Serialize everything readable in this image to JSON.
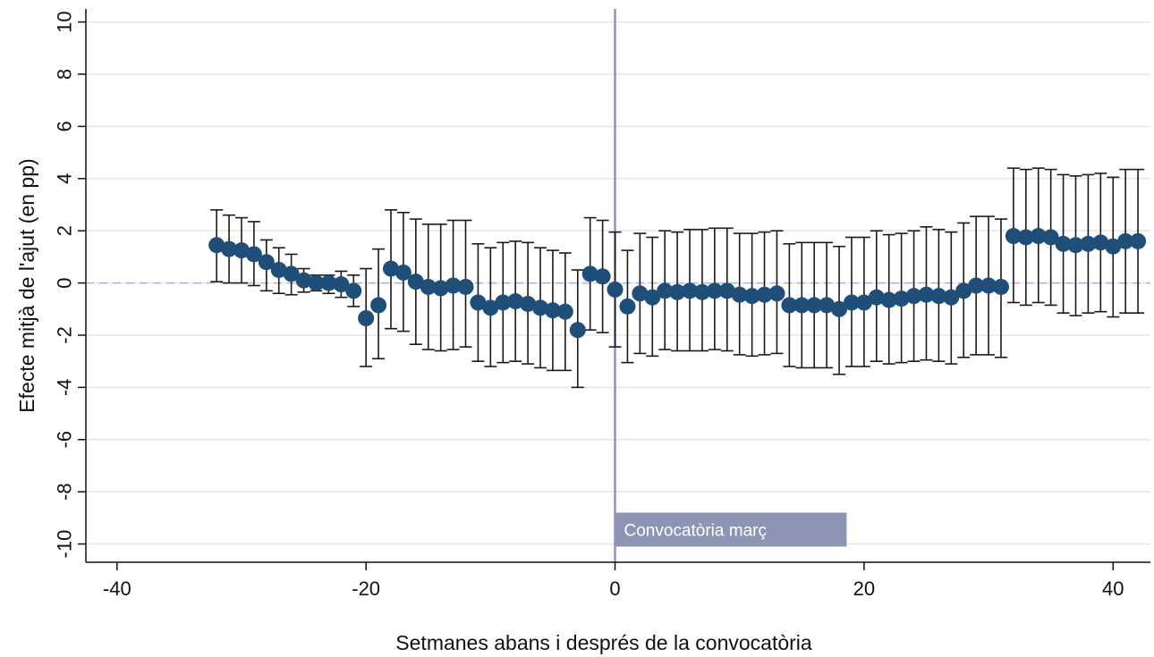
{
  "chart_data": {
    "type": "scatter",
    "title": "",
    "xlabel": "Setmanes abans i després de la convocatòria",
    "ylabel": "Efecte mitjà de l'ajut (en pp)",
    "xlim": [
      -42.5,
      43
    ],
    "ylim": [
      -10.7,
      10.5
    ],
    "x_ticks": [
      -40,
      -20,
      0,
      20,
      40
    ],
    "x_tick_labels": [
      "-40",
      "-20",
      "0",
      "20",
      "40"
    ],
    "y_ticks": [
      -10,
      -8,
      -6,
      -4,
      -2,
      0,
      2,
      4,
      6,
      8,
      10
    ],
    "y_tick_labels": [
      "-10",
      "-8",
      "-6",
      "-4",
      "-2",
      "0",
      "2",
      "4",
      "6",
      "8",
      "10"
    ],
    "grid": true,
    "reference_line_y": 0,
    "event_line_x": 0,
    "annotation": {
      "text": "Convocatòria març",
      "x_from": 0,
      "x_to": 18.6,
      "y_from": -10.1,
      "y_to": -8.8
    },
    "colors": {
      "points": "#1f4e79",
      "errorbars": "#1a1a1a",
      "event_line": "#8c96b4",
      "reference_line": "#a8b4d0",
      "annotation_bg": "#8c96b4",
      "grid": "#e6e6e6"
    },
    "series": [
      {
        "x": [
          -32,
          -31,
          -30,
          -29,
          -28,
          -27,
          -26,
          -25,
          -24,
          -23,
          -22,
          -21,
          -20,
          -19,
          -18,
          -17,
          -16,
          -15,
          -14,
          -13,
          -12,
          -11,
          -10,
          -9,
          -8,
          -7,
          -6,
          -5,
          -4,
          -3,
          -2,
          -1,
          0,
          1,
          2,
          3,
          4,
          5,
          6,
          7,
          8,
          9,
          10,
          11,
          12,
          13,
          14,
          15,
          16,
          17,
          18,
          19,
          20,
          21,
          22,
          23,
          24,
          25,
          26,
          27,
          28,
          29,
          30,
          31,
          32,
          33,
          34,
          35,
          36,
          37,
          38,
          39,
          40,
          41,
          42
        ],
        "y": [
          1.45,
          1.3,
          1.25,
          1.1,
          0.8,
          0.5,
          0.35,
          0.1,
          0.0,
          0.0,
          -0.05,
          -0.3,
          -1.35,
          -0.85,
          0.55,
          0.4,
          0.05,
          -0.15,
          -0.2,
          -0.1,
          -0.15,
          -0.75,
          -0.95,
          -0.75,
          -0.7,
          -0.8,
          -0.95,
          -1.05,
          -1.1,
          -1.8,
          0.35,
          0.25,
          -0.25,
          -0.9,
          -0.4,
          -0.55,
          -0.3,
          -0.35,
          -0.3,
          -0.35,
          -0.3,
          -0.3,
          -0.45,
          -0.5,
          -0.45,
          -0.4,
          -0.85,
          -0.85,
          -0.85,
          -0.85,
          -1.0,
          -0.75,
          -0.75,
          -0.55,
          -0.65,
          -0.6,
          -0.5,
          -0.45,
          -0.5,
          -0.55,
          -0.3,
          -0.1,
          -0.1,
          -0.15,
          1.8,
          1.75,
          1.8,
          1.75,
          1.5,
          1.45,
          1.5,
          1.55,
          1.4,
          1.6,
          1.6
        ],
        "lower": [
          0.05,
          0.0,
          0.0,
          -0.1,
          -0.3,
          -0.4,
          -0.45,
          -0.35,
          -0.3,
          -0.4,
          -0.55,
          -0.9,
          -3.2,
          -2.9,
          -1.75,
          -1.85,
          -2.35,
          -2.55,
          -2.6,
          -2.55,
          -2.45,
          -3.0,
          -3.2,
          -3.05,
          -3.0,
          -3.1,
          -3.25,
          -3.35,
          -3.35,
          -4.0,
          -1.8,
          -1.9,
          -2.45,
          -3.05,
          -2.7,
          -2.8,
          -2.55,
          -2.6,
          -2.6,
          -2.6,
          -2.55,
          -2.6,
          -2.75,
          -2.8,
          -2.75,
          -2.7,
          -3.2,
          -3.25,
          -3.25,
          -3.25,
          -3.5,
          -3.2,
          -3.2,
          -3.0,
          -3.1,
          -3.05,
          -3.0,
          -2.95,
          -3.0,
          -3.1,
          -2.85,
          -2.75,
          -2.75,
          -2.85,
          -0.75,
          -0.85,
          -0.75,
          -0.85,
          -1.15,
          -1.25,
          -1.15,
          -1.1,
          -1.3,
          -1.15,
          -1.15
        ],
        "upper": [
          2.8,
          2.6,
          2.5,
          2.35,
          1.65,
          1.35,
          1.1,
          0.55,
          0.3,
          0.3,
          0.45,
          0.3,
          0.55,
          1.3,
          2.8,
          2.7,
          2.45,
          2.25,
          2.25,
          2.4,
          2.4,
          1.5,
          1.35,
          1.55,
          1.6,
          1.55,
          1.35,
          1.25,
          1.15,
          0.5,
          2.5,
          2.4,
          1.95,
          1.25,
          1.9,
          1.75,
          2.0,
          1.95,
          2.05,
          2.05,
          2.1,
          2.1,
          1.9,
          1.9,
          1.95,
          2.0,
          1.5,
          1.55,
          1.55,
          1.55,
          1.4,
          1.75,
          1.75,
          2.0,
          1.85,
          1.9,
          2.0,
          2.15,
          2.05,
          1.95,
          2.3,
          2.55,
          2.55,
          2.45,
          4.4,
          4.35,
          4.4,
          4.35,
          4.15,
          4.1,
          4.15,
          4.2,
          4.05,
          4.35,
          4.35
        ]
      }
    ]
  }
}
